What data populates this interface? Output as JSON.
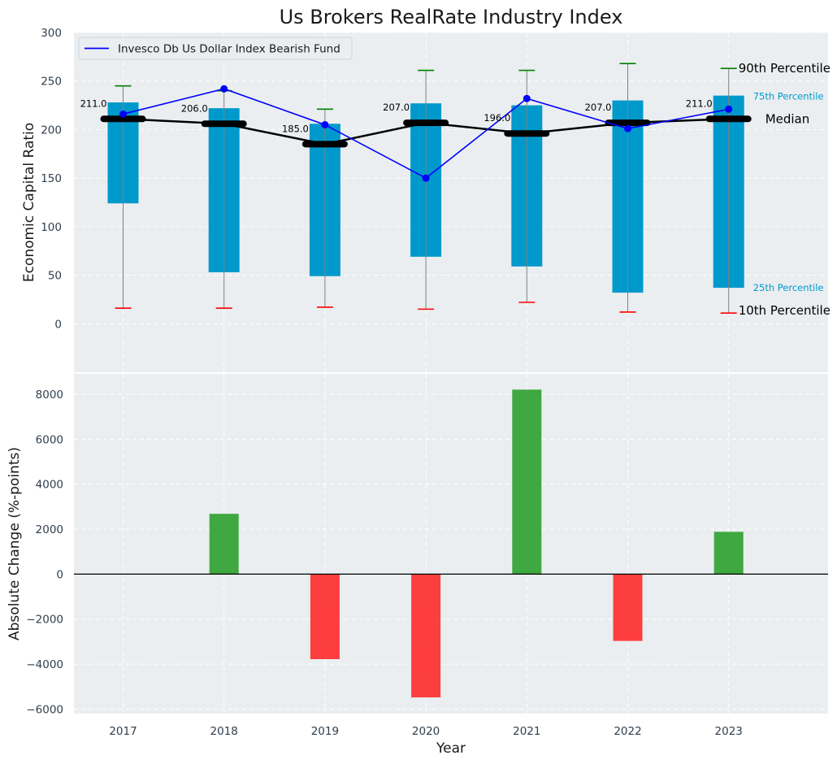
{
  "chart_data": [
    {
      "type": "box",
      "title": "Us Brokers RealRate Industry Index",
      "ylabel": "Economic Capital Ratio",
      "ylim": [
        -50,
        300
      ],
      "yticks": [
        0,
        50,
        100,
        150,
        200,
        250,
        300
      ],
      "categories": [
        "2017",
        "2018",
        "2019",
        "2020",
        "2021",
        "2022",
        "2023"
      ],
      "p10": [
        16,
        16,
        17,
        15,
        22,
        12,
        11
      ],
      "p25": [
        124,
        53,
        49,
        69,
        59,
        32,
        37
      ],
      "median": [
        211,
        206,
        185,
        207,
        196,
        207,
        211
      ],
      "median_labels": [
        "211.0",
        "206.0",
        "185.0",
        "207.0",
        "196.0",
        "207.0",
        "211.0"
      ],
      "p75": [
        228,
        222,
        206,
        227,
        225,
        230,
        235
      ],
      "p90": [
        245,
        240,
        221,
        261,
        261,
        268,
        263
      ],
      "series": [
        {
          "name": "Invesco Db Us Dollar Index Bearish Fund",
          "values": [
            216,
            242,
            205,
            150,
            232,
            201,
            221
          ],
          "color": "#0000ff"
        }
      ],
      "legend": "top-left",
      "annotations": {
        "p90": "90th Percentile",
        "p75": "75th Percentile",
        "median": "Median",
        "p25": "25th Percentile",
        "p10": "10th Percentile"
      },
      "colors": {
        "box": "#0099cc",
        "median": "#000000",
        "p90_cap": "#008000",
        "p10_cap": "#ff0000",
        "whisker": "#808080",
        "background": "#eaeef0"
      }
    },
    {
      "type": "bar",
      "ylabel": "Absolute Change (%-points)",
      "xlabel": "Year",
      "ylim": [
        -6200,
        8900
      ],
      "yticks": [
        -6000,
        -4000,
        -2000,
        0,
        2000,
        4000,
        6000,
        8000
      ],
      "categories": [
        "2017",
        "2018",
        "2019",
        "2020",
        "2021",
        "2022",
        "2023"
      ],
      "values": [
        0,
        2680,
        -3780,
        -5480,
        8200,
        -2970,
        1880
      ],
      "colors": {
        "positive": "#2ca02c",
        "negative": "#ff2a2a"
      }
    }
  ]
}
